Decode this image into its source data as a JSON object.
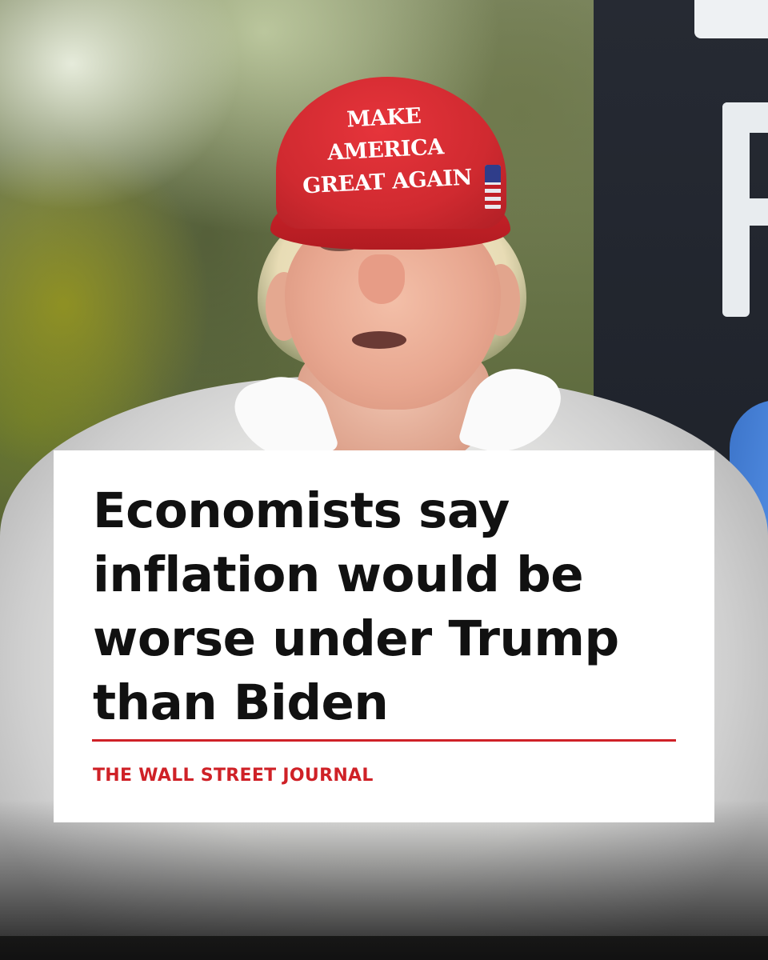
{
  "photo": {
    "cap_text": "MAKE AMERICA GREAT AGAIN"
  },
  "card": {
    "headline": "Economists say inflation would be worse under Trump than Biden",
    "source": "THE WALL STREET JOURNAL",
    "accent_color": "#cf2127",
    "background_color": "#ffffff",
    "text_color": "#111111"
  }
}
